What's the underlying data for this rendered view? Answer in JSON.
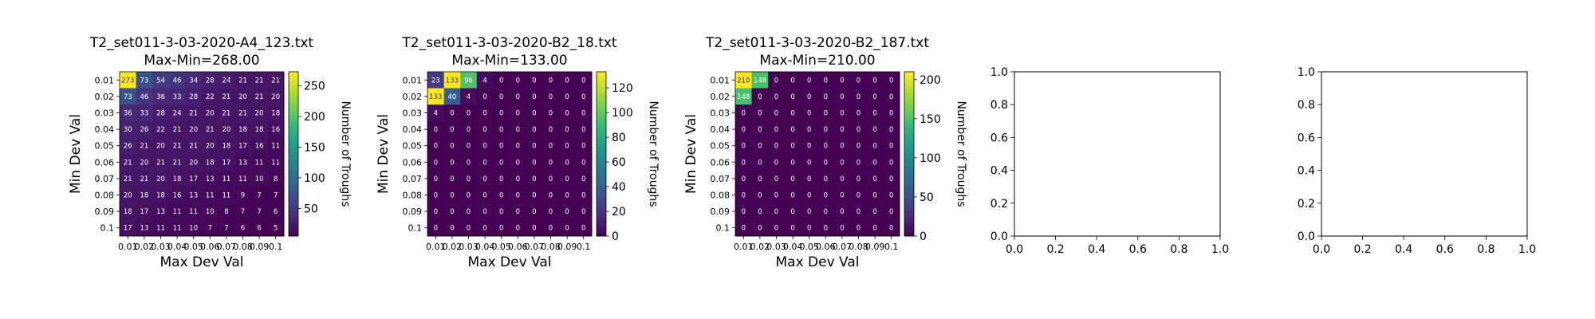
{
  "chart_data": [
    {
      "type": "heatmap",
      "title": "T2_set011-3-03-2020-A4_123.txt",
      "subtitle": "Max-Min=268.00",
      "xlabel": "Max Dev Val",
      "ylabel": "Min Dev Val",
      "colorbar_label": "Number of Troughs",
      "colorbar_ticks": [
        50,
        100,
        150,
        200,
        250
      ],
      "vmin": 5,
      "vmax": 273,
      "x": [
        "0.01",
        "0.02",
        "0.03",
        "0.04",
        "0.05",
        "0.06",
        "0.07",
        "0.08",
        "0.09",
        "0.1"
      ],
      "y": [
        "0.01",
        "0.02",
        "0.03",
        "0.04",
        "0.05",
        "0.06",
        "0.07",
        "0.08",
        "0.09",
        "0.1"
      ],
      "values": [
        [
          273,
          73,
          54,
          46,
          34,
          28,
          24,
          21,
          21,
          21
        ],
        [
          73,
          46,
          36,
          33,
          28,
          22,
          21,
          20,
          21,
          20
        ],
        [
          36,
          33,
          28,
          24,
          21,
          20,
          21,
          21,
          20,
          18
        ],
        [
          30,
          26,
          22,
          21,
          20,
          21,
          20,
          18,
          18,
          16
        ],
        [
          26,
          21,
          20,
          21,
          21,
          20,
          18,
          17,
          16,
          11
        ],
        [
          21,
          20,
          21,
          21,
          20,
          18,
          17,
          13,
          11,
          11
        ],
        [
          21,
          21,
          20,
          18,
          17,
          13,
          11,
          11,
          10,
          8
        ],
        [
          20,
          18,
          18,
          16,
          13,
          11,
          11,
          9,
          7,
          7
        ],
        [
          18,
          17,
          13,
          11,
          11,
          10,
          8,
          7,
          7,
          6
        ],
        [
          17,
          13,
          11,
          11,
          10,
          7,
          7,
          6,
          6,
          5
        ]
      ]
    },
    {
      "type": "heatmap",
      "title": "T2_set011-3-03-2020-B2_18.txt",
      "subtitle": "Max-Min=133.00",
      "xlabel": "Max Dev Val",
      "ylabel": "Min Dev Val",
      "colorbar_label": "Number of Troughs",
      "colorbar_ticks": [
        0,
        20,
        40,
        60,
        80,
        100,
        120
      ],
      "vmin": 0,
      "vmax": 133,
      "x": [
        "0.01",
        "0.02",
        "0.03",
        "0.04",
        "0.05",
        "0.06",
        "0.07",
        "0.08",
        "0.09",
        "0.1"
      ],
      "y": [
        "0.01",
        "0.02",
        "0.03",
        "0.04",
        "0.05",
        "0.06",
        "0.07",
        "0.08",
        "0.09",
        "0.1"
      ],
      "values": [
        [
          23,
          133,
          96,
          4,
          0,
          0,
          0,
          0,
          0,
          0
        ],
        [
          133,
          40,
          4,
          0,
          0,
          0,
          0,
          0,
          0,
          0
        ],
        [
          4,
          0,
          0,
          0,
          0,
          0,
          0,
          0,
          0,
          0
        ],
        [
          0,
          0,
          0,
          0,
          0,
          0,
          0,
          0,
          0,
          0
        ],
        [
          0,
          0,
          0,
          0,
          0,
          0,
          0,
          0,
          0,
          0
        ],
        [
          0,
          0,
          0,
          0,
          0,
          0,
          0,
          0,
          0,
          0
        ],
        [
          0,
          0,
          0,
          0,
          0,
          0,
          0,
          0,
          0,
          0
        ],
        [
          0,
          0,
          0,
          0,
          0,
          0,
          0,
          0,
          0,
          0
        ],
        [
          0,
          0,
          0,
          0,
          0,
          0,
          0,
          0,
          0,
          0
        ],
        [
          0,
          0,
          0,
          0,
          0,
          0,
          0,
          0,
          0,
          0
        ]
      ]
    },
    {
      "type": "heatmap",
      "title": "T2_set011-3-03-2020-B2_187.txt",
      "subtitle": "Max-Min=210.00",
      "xlabel": "Max Dev Val",
      "ylabel": "Min Dev Val",
      "colorbar_label": "Number of Troughs",
      "colorbar_ticks": [
        0,
        50,
        100,
        150,
        200
      ],
      "vmin": 0,
      "vmax": 210,
      "x": [
        "0.01",
        "0.02",
        "0.03",
        "0.04",
        "0.05",
        "0.06",
        "0.07",
        "0.08",
        "0.09",
        "0.1"
      ],
      "y": [
        "0.01",
        "0.02",
        "0.03",
        "0.04",
        "0.05",
        "0.06",
        "0.07",
        "0.08",
        "0.09",
        "0.1"
      ],
      "values": [
        [
          210,
          148,
          0,
          0,
          0,
          0,
          0,
          0,
          0,
          0
        ],
        [
          148,
          0,
          0,
          0,
          0,
          0,
          0,
          0,
          0,
          0
        ],
        [
          0,
          0,
          0,
          0,
          0,
          0,
          0,
          0,
          0,
          0
        ],
        [
          0,
          0,
          0,
          0,
          0,
          0,
          0,
          0,
          0,
          0
        ],
        [
          0,
          0,
          0,
          0,
          0,
          0,
          0,
          0,
          0,
          0
        ],
        [
          0,
          0,
          0,
          0,
          0,
          0,
          0,
          0,
          0,
          0
        ],
        [
          0,
          0,
          0,
          0,
          0,
          0,
          0,
          0,
          0,
          0
        ],
        [
          0,
          0,
          0,
          0,
          0,
          0,
          0,
          0,
          0,
          0
        ],
        [
          0,
          0,
          0,
          0,
          0,
          0,
          0,
          0,
          0,
          0
        ],
        [
          0,
          0,
          0,
          0,
          0,
          0,
          0,
          0,
          0,
          0
        ]
      ]
    },
    {
      "type": "scatter",
      "title": "",
      "xlim": [
        0,
        1
      ],
      "ylim": [
        0,
        1
      ],
      "xticks": [
        "0.0",
        "0.2",
        "0.4",
        "0.6",
        "0.8",
        "1.0"
      ],
      "yticks": [
        "0.0",
        "0.2",
        "0.4",
        "0.6",
        "0.8",
        "1.0"
      ],
      "series": []
    },
    {
      "type": "scatter",
      "title": "",
      "xlim": [
        0,
        1
      ],
      "ylim": [
        0,
        1
      ],
      "xticks": [
        "0.0",
        "0.2",
        "0.4",
        "0.6",
        "0.8",
        "1.0"
      ],
      "yticks": [
        "0.0",
        "0.2",
        "0.4",
        "0.6",
        "0.8",
        "1.0"
      ],
      "series": []
    }
  ]
}
